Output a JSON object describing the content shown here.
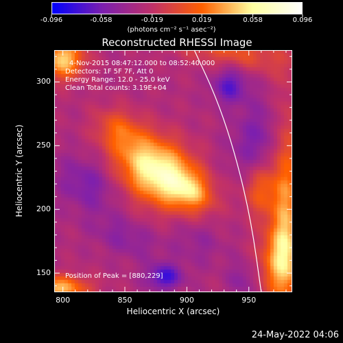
{
  "chart_data": {
    "type": "heatmap",
    "title": "Reconstructed RHESSI Image",
    "colorbar": {
      "ticks": [
        "-0.096",
        "-0.058",
        "-0.019",
        "0.019",
        "0.058",
        "0.096"
      ],
      "range": [
        -0.096,
        0.096
      ],
      "units": "(photons cm⁻² s⁻¹ asec⁻²)",
      "colors": [
        "#0000ff",
        "#7b1fb0",
        "#c0306a",
        "#ff6000",
        "#ffffa0",
        "#ffffff"
      ]
    },
    "xlabel": "Heliocentric X (arcsec)",
    "ylabel": "Heliocentric Y (arcsec)",
    "xlim": [
      793,
      985
    ],
    "ylim": [
      135,
      325
    ],
    "xticks": [
      "800",
      "850",
      "900",
      "950"
    ],
    "yticks": [
      "150",
      "200",
      "250",
      "300"
    ],
    "annotations": {
      "time": "4-Nov-2015 08:47:12.000 to 08:52:40.000",
      "detectors": "Detectors: 1F 5F 7F, Att 0",
      "energy": "Energy Range: 12.0 - 25.0 keV",
      "clean": "Clean    Total counts: 3.19E+04",
      "peak": "Position of Peak = [880,229]"
    },
    "peak": {
      "x": 880,
      "y": 229
    },
    "limb": {
      "points": [
        [
          906,
          325
        ],
        [
          925,
          285
        ],
        [
          940,
          240
        ],
        [
          952,
          190
        ],
        [
          960,
          135
        ]
      ]
    },
    "blobs": [
      {
        "x": 876,
        "y": 230,
        "sx": 24,
        "sy": 17,
        "v": 0.096,
        "rot": -0.55
      },
      {
        "x": 845,
        "y": 262,
        "sx": 14,
        "sy": 11,
        "v": 0.035,
        "rot": -0.6
      },
      {
        "x": 903,
        "y": 214,
        "sx": 14,
        "sy": 10,
        "v": 0.045,
        "rot": -0.5
      },
      {
        "x": 800,
        "y": 318,
        "sx": 12,
        "sy": 11,
        "v": 0.075,
        "rot": 0
      },
      {
        "x": 935,
        "y": 325,
        "sx": 35,
        "sy": 10,
        "v": 0.035,
        "rot": -0.2
      },
      {
        "x": 980,
        "y": 205,
        "sx": 8,
        "sy": 55,
        "v": 0.05,
        "rot": 0
      },
      {
        "x": 975,
        "y": 160,
        "sx": 12,
        "sy": 22,
        "v": 0.055,
        "rot": 0
      },
      {
        "x": 960,
        "y": 215,
        "sx": 10,
        "sy": 14,
        "v": 0.04,
        "rot": 0
      },
      {
        "x": 795,
        "y": 138,
        "sx": 18,
        "sy": 7,
        "v": 0.07,
        "rot": 0
      },
      {
        "x": 820,
        "y": 220,
        "sx": 18,
        "sy": 14,
        "v": -0.028,
        "rot": -0.5
      },
      {
        "x": 850,
        "y": 178,
        "sx": 20,
        "sy": 10,
        "v": -0.02,
        "rot": -0.4
      },
      {
        "x": 882,
        "y": 147,
        "sx": 10,
        "sy": 7,
        "v": -0.048,
        "rot": 0
      },
      {
        "x": 935,
        "y": 297,
        "sx": 10,
        "sy": 10,
        "v": -0.04,
        "rot": 0
      },
      {
        "x": 955,
        "y": 255,
        "sx": 14,
        "sy": 22,
        "v": -0.025,
        "rot": -0.3
      },
      {
        "x": 908,
        "y": 175,
        "sx": 16,
        "sy": 12,
        "v": -0.015,
        "rot": -0.5
      },
      {
        "x": 945,
        "y": 145,
        "sx": 8,
        "sy": 10,
        "v": -0.02,
        "rot": 0
      }
    ]
  },
  "footer": {
    "timestamp": "24-May-2022 04:06"
  }
}
